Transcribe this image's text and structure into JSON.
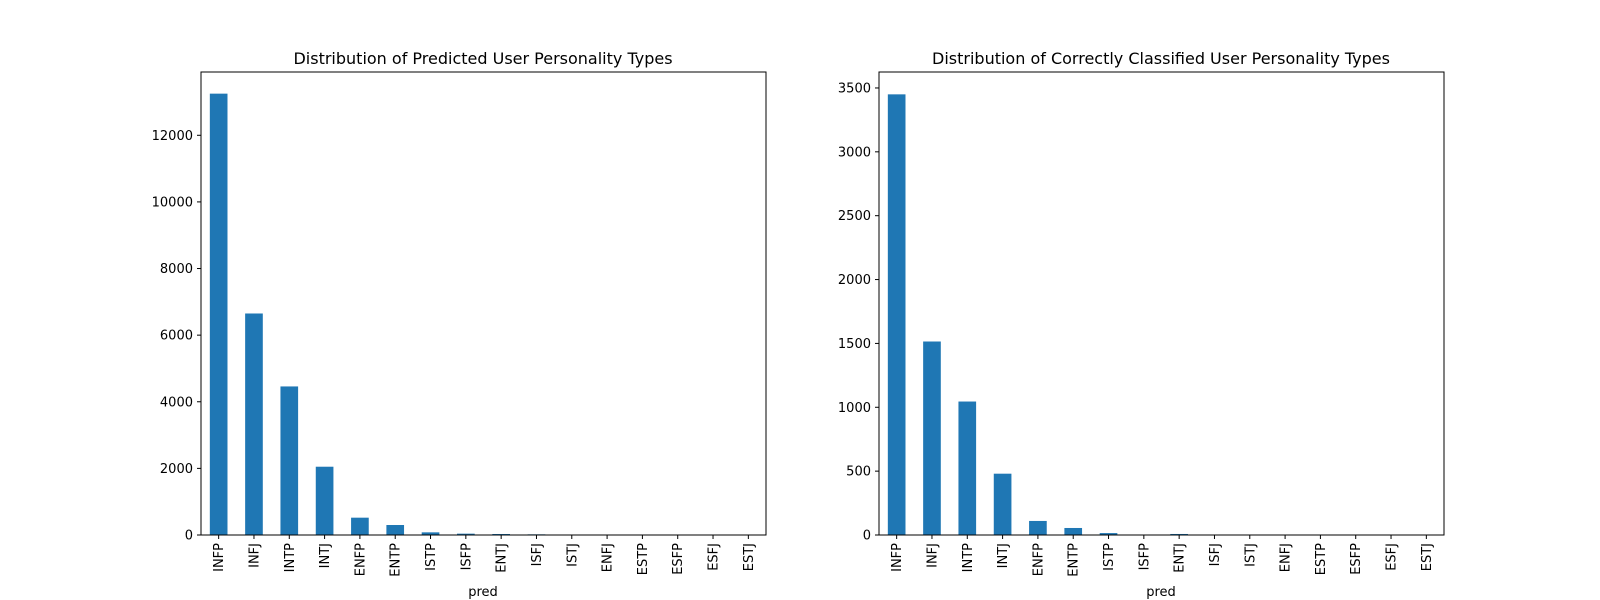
{
  "chart_data": [
    {
      "type": "bar",
      "title": "Distribution of Predicted User Personality Types",
      "xlabel": "pred",
      "ylabel": "",
      "categories": [
        "INFP",
        "INFJ",
        "INTP",
        "INTJ",
        "ENFP",
        "ENTP",
        "ISTP",
        "ISFP",
        "ENTJ",
        "ISFJ",
        "ISTJ",
        "ENFJ",
        "ESTP",
        "ESFP",
        "ESFJ",
        "ESTJ"
      ],
      "values": [
        13250,
        6650,
        4460,
        2050,
        520,
        300,
        80,
        40,
        30,
        20,
        15,
        8,
        5,
        3,
        2,
        1
      ],
      "ylim": [
        0,
        13900
      ],
      "yticks": [
        0,
        2000,
        4000,
        6000,
        8000,
        10000,
        12000
      ],
      "color": "#1f77b4",
      "grid": false,
      "legend": false
    },
    {
      "type": "bar",
      "title": "Distribution of Correctly Classified User Personality Types",
      "xlabel": "pred",
      "ylabel": "",
      "categories": [
        "INFP",
        "INFJ",
        "INTP",
        "INTJ",
        "ENFP",
        "ENTP",
        "ISTP",
        "ISFP",
        "ENTJ",
        "ISFJ",
        "ISTJ",
        "ENFJ",
        "ESTP",
        "ESFP",
        "ESFJ",
        "ESTJ"
      ],
      "values": [
        3450,
        1515,
        1045,
        480,
        110,
        55,
        15,
        3,
        8,
        2,
        1,
        1,
        0,
        0,
        0,
        0
      ],
      "ylim": [
        0,
        3625
      ],
      "yticks": [
        0,
        500,
        1000,
        1500,
        2000,
        2500,
        3000,
        3500
      ],
      "color": "#1f77b4",
      "grid": false,
      "legend": false
    }
  ]
}
